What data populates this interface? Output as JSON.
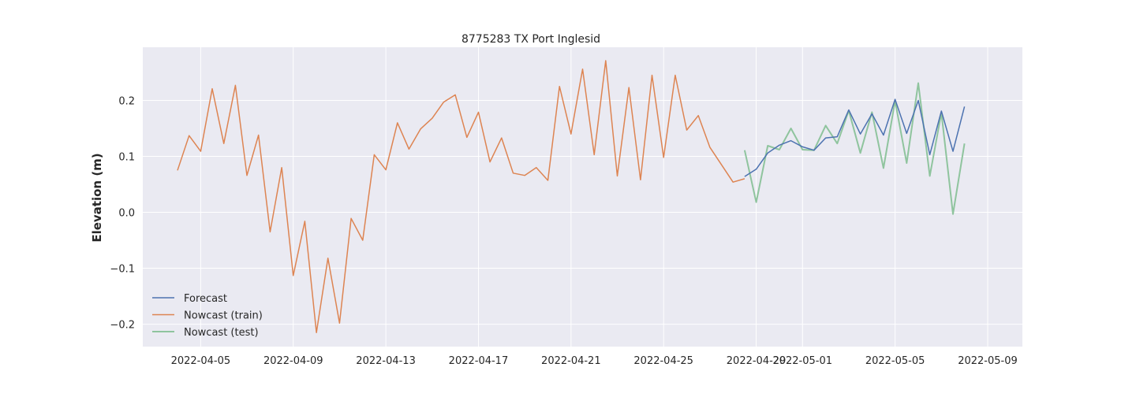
{
  "chart_data": {
    "type": "line",
    "title": "8775283 TX Port Inglesid",
    "xlabel": "",
    "ylabel": "Elevation (m)",
    "x_type": "date",
    "xlim": [
      "2022-04-02T12:00",
      "2022-05-10T12:00"
    ],
    "ylim": [
      -0.24,
      0.295
    ],
    "x_ticks": [
      "2022-04-05",
      "2022-04-09",
      "2022-04-13",
      "2022-04-17",
      "2022-04-21",
      "2022-04-25",
      "2022-04-29",
      "2022-05-01",
      "2022-05-05",
      "2022-05-09"
    ],
    "y_ticks": [
      -0.2,
      -0.1,
      0.0,
      0.1,
      0.2
    ],
    "y_tick_labels": [
      "−0.2",
      "−0.1",
      "0.0",
      "0.1",
      "0.2"
    ],
    "grid": true,
    "legend": "lower-left",
    "colors": {
      "background": "#eaeaf2",
      "grid": "#ffffff",
      "forecast": "#4c72b0",
      "train": "#dd8452",
      "test": "#8fc49e"
    },
    "series": [
      {
        "name": "Forecast",
        "color_key": "forecast",
        "start": "2022-04-28T12:00",
        "step_hours": 12,
        "values": [
          0.064,
          0.077,
          0.106,
          0.12,
          0.128,
          0.117,
          0.111,
          0.133,
          0.135,
          0.183,
          0.14,
          0.176,
          0.138,
          0.202,
          0.141,
          0.2,
          0.103,
          0.181,
          0.109,
          0.189
        ]
      },
      {
        "name": "Nowcast (train)",
        "color_key": "train",
        "start": "2022-04-04T00:00",
        "step_hours": 12,
        "values": [
          0.075,
          0.137,
          0.109,
          0.221,
          0.123,
          0.227,
          0.066,
          0.138,
          -0.035,
          0.08,
          -0.113,
          -0.016,
          -0.215,
          -0.082,
          -0.198,
          -0.011,
          -0.05,
          0.103,
          0.076,
          0.16,
          0.113,
          0.149,
          0.168,
          0.197,
          0.21,
          0.134,
          0.179,
          0.09,
          0.133,
          0.07,
          0.066,
          0.08,
          0.057,
          0.225,
          0.14,
          0.256,
          0.103,
          0.271,
          0.065,
          0.223,
          0.058,
          0.245,
          0.098,
          0.245,
          0.147,
          0.173,
          0.116,
          0.085,
          0.054,
          0.06
        ]
      },
      {
        "name": "Nowcast (test)",
        "color_key": "test",
        "start": "2022-04-28T12:00",
        "step_hours": 12,
        "values": [
          0.111,
          0.018,
          0.119,
          0.112,
          0.15,
          0.112,
          0.111,
          0.155,
          0.123,
          0.182,
          0.106,
          0.179,
          0.079,
          0.199,
          0.088,
          0.231,
          0.065,
          0.178,
          -0.003,
          0.123
        ]
      }
    ]
  }
}
